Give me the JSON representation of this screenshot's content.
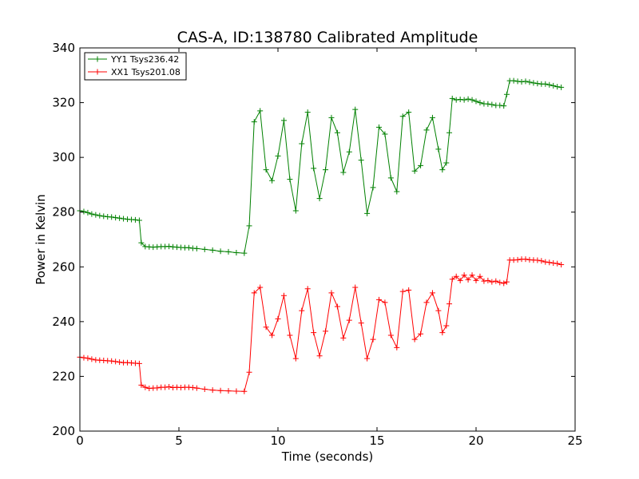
{
  "chart_data": {
    "type": "line",
    "title": "CAS-A, ID:138780 Calibrated Amplitude",
    "xlabel": "Time (seconds)",
    "ylabel": "Power in Kelvin",
    "xlim": [
      0,
      25
    ],
    "ylim": [
      200,
      340
    ],
    "xticks": [
      "0",
      "5",
      "10",
      "15",
      "20",
      "25"
    ],
    "yticks": [
      "200",
      "220",
      "240",
      "260",
      "280",
      "300",
      "320",
      "340"
    ],
    "grid": false,
    "legend_position": "top-left",
    "series": [
      {
        "name": "YY1 Tsys236.42",
        "color": "#008000",
        "marker": "+",
        "x": [
          0.0,
          0.2,
          0.4,
          0.6,
          0.8,
          1.0,
          1.2,
          1.4,
          1.6,
          1.8,
          2.0,
          2.2,
          2.4,
          2.6,
          2.8,
          3.0,
          3.1,
          3.3,
          3.5,
          3.7,
          3.9,
          4.1,
          4.3,
          4.5,
          4.7,
          4.9,
          5.1,
          5.3,
          5.5,
          5.7,
          5.9,
          6.3,
          6.7,
          7.1,
          7.5,
          7.9,
          8.3,
          8.55,
          8.8,
          9.1,
          9.4,
          9.7,
          10.0,
          10.3,
          10.6,
          10.9,
          11.2,
          11.5,
          11.8,
          12.1,
          12.4,
          12.7,
          13.0,
          13.3,
          13.6,
          13.9,
          14.2,
          14.5,
          14.8,
          15.1,
          15.4,
          15.7,
          16.0,
          16.3,
          16.6,
          16.9,
          17.2,
          17.5,
          17.8,
          18.1,
          18.3,
          18.5,
          18.65,
          18.8,
          19.0,
          19.2,
          19.4,
          19.6,
          19.8,
          20.0,
          20.2,
          20.4,
          20.6,
          20.8,
          21.0,
          21.2,
          21.4,
          21.55,
          21.7,
          21.9,
          22.1,
          22.3,
          22.5,
          22.7,
          22.9,
          23.1,
          23.3,
          23.5,
          23.7,
          23.9,
          24.1,
          24.3
        ],
        "y": [
          280.5,
          280.2,
          279.8,
          279.3,
          279.0,
          278.7,
          278.5,
          278.3,
          278.2,
          278.0,
          277.8,
          277.6,
          277.4,
          277.3,
          277.2,
          277.0,
          268.8,
          267.4,
          267.3,
          267.2,
          267.3,
          267.4,
          267.4,
          267.5,
          267.3,
          267.2,
          267.1,
          267.0,
          267.0,
          266.8,
          266.7,
          266.4,
          266.1,
          265.7,
          265.5,
          265.2,
          265.0,
          275.0,
          313.0,
          317.0,
          295.5,
          291.5,
          300.5,
          313.5,
          292.0,
          280.5,
          305.0,
          316.5,
          296.0,
          285.0,
          295.5,
          314.5,
          309.0,
          294.5,
          302.0,
          317.5,
          299.0,
          279.5,
          289.0,
          311.0,
          308.5,
          292.5,
          287.5,
          315.0,
          316.5,
          295.0,
          297.0,
          310.0,
          314.5,
          303.0,
          295.5,
          298.0,
          309.0,
          321.5,
          321.0,
          321.2,
          321.0,
          321.3,
          321.0,
          320.5,
          320.0,
          319.6,
          319.5,
          319.3,
          319.0,
          319.0,
          318.8,
          323.0,
          328.0,
          328.0,
          327.8,
          327.6,
          327.8,
          327.5,
          327.2,
          327.0,
          326.8,
          326.8,
          326.5,
          326.2,
          325.8,
          325.6
        ]
      },
      {
        "name": "XX1 Tsys201.08",
        "color": "#ff0000",
        "marker": "+",
        "x": [
          0.0,
          0.2,
          0.4,
          0.6,
          0.8,
          1.0,
          1.2,
          1.4,
          1.6,
          1.8,
          2.0,
          2.2,
          2.4,
          2.6,
          2.8,
          3.0,
          3.1,
          3.3,
          3.5,
          3.7,
          3.9,
          4.1,
          4.3,
          4.5,
          4.7,
          4.9,
          5.1,
          5.3,
          5.5,
          5.7,
          5.9,
          6.3,
          6.7,
          7.1,
          7.5,
          7.9,
          8.3,
          8.55,
          8.8,
          9.1,
          9.4,
          9.7,
          10.0,
          10.3,
          10.6,
          10.9,
          11.2,
          11.5,
          11.8,
          12.1,
          12.4,
          12.7,
          13.0,
          13.3,
          13.6,
          13.9,
          14.2,
          14.5,
          14.8,
          15.1,
          15.4,
          15.7,
          16.0,
          16.3,
          16.6,
          16.9,
          17.2,
          17.5,
          17.8,
          18.1,
          18.3,
          18.5,
          18.65,
          18.8,
          19.0,
          19.2,
          19.4,
          19.6,
          19.8,
          20.0,
          20.2,
          20.4,
          20.6,
          20.8,
          21.0,
          21.2,
          21.4,
          21.55,
          21.7,
          21.9,
          22.1,
          22.3,
          22.5,
          22.7,
          22.9,
          23.1,
          23.3,
          23.5,
          23.7,
          23.9,
          24.1,
          24.3
        ],
        "y": [
          227.0,
          226.8,
          226.6,
          226.3,
          226.0,
          225.9,
          225.8,
          225.7,
          225.6,
          225.4,
          225.2,
          225.0,
          225.0,
          224.9,
          224.8,
          224.7,
          216.8,
          216.0,
          215.6,
          215.7,
          215.8,
          216.0,
          216.0,
          216.2,
          215.9,
          216.0,
          215.9,
          216.0,
          216.0,
          215.9,
          215.7,
          215.3,
          215.0,
          214.8,
          214.7,
          214.6,
          214.5,
          221.5,
          250.5,
          252.5,
          238.0,
          235.0,
          241.0,
          249.5,
          235.0,
          226.5,
          244.0,
          252.0,
          236.0,
          227.5,
          236.5,
          250.5,
          245.5,
          234.0,
          240.5,
          252.5,
          239.5,
          226.5,
          233.5,
          248.0,
          247.0,
          235.0,
          230.5,
          251.0,
          251.5,
          233.5,
          235.5,
          247.0,
          250.5,
          244.0,
          236.0,
          238.5,
          246.5,
          255.5,
          256.5,
          255.0,
          257.0,
          255.3,
          257.0,
          255.0,
          256.5,
          254.8,
          255.0,
          254.5,
          254.8,
          254.3,
          254.0,
          254.5,
          262.5,
          262.5,
          262.6,
          262.8,
          262.8,
          262.6,
          262.5,
          262.4,
          262.2,
          261.8,
          261.6,
          261.4,
          261.2,
          260.8
        ]
      }
    ]
  }
}
